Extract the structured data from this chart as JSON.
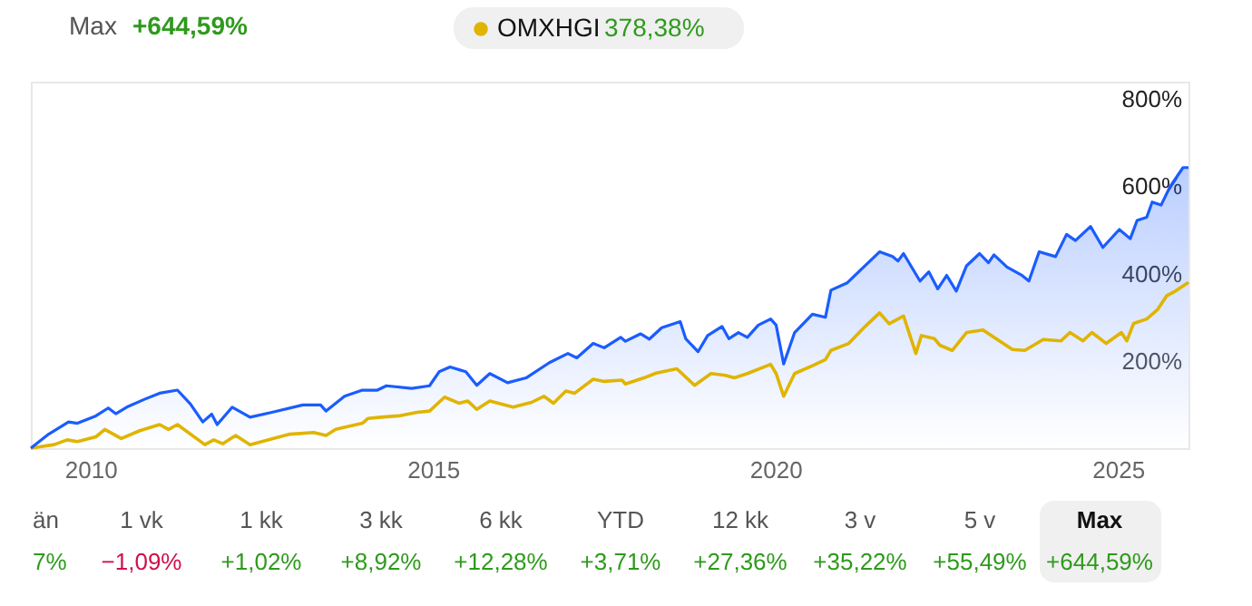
{
  "chart_data": {
    "type": "line",
    "legend": "top",
    "xlim": [
      2009.13,
      2026.03
    ],
    "xticks": [
      2010,
      2015,
      2020,
      2025
    ],
    "ylim": [
      0,
      840
    ],
    "yticks": [
      {
        "value": 200,
        "label": "200%"
      },
      {
        "value": 400,
        "label": "400%"
      },
      {
        "value": 600,
        "label": "600%"
      },
      {
        "value": 800,
        "label": "800%"
      }
    ],
    "grid": false,
    "series": [
      {
        "type": "area",
        "color": "#1a5cff",
        "x": [
          2009.13,
          2009.39,
          2009.68,
          2009.81,
          2010.08,
          2010.26,
          2010.37,
          2010.53,
          2010.79,
          2011.01,
          2011.27,
          2011.46,
          2011.64,
          2011.77,
          2011.85,
          2012.07,
          2012.33,
          2012.65,
          2013.1,
          2013.36,
          2013.44,
          2013.71,
          2013.97,
          2014.19,
          2014.32,
          2014.69,
          2014.95,
          2015.09,
          2015.25,
          2015.48,
          2015.64,
          2015.83,
          2016.09,
          2016.36,
          2016.7,
          2016.97,
          2017.1,
          2017.34,
          2017.5,
          2017.74,
          2017.81,
          2018.03,
          2018.16,
          2018.34,
          2018.61,
          2018.69,
          2018.87,
          2019.01,
          2019.22,
          2019.32,
          2019.46,
          2019.59,
          2019.75,
          2019.93,
          2020.01,
          2020.12,
          2020.28,
          2020.54,
          2020.73,
          2020.81,
          2021.05,
          2021.26,
          2021.52,
          2021.71,
          2021.79,
          2021.87,
          2022.11,
          2022.24,
          2022.37,
          2022.5,
          2022.64,
          2022.79,
          2022.98,
          2023.11,
          2023.19,
          2023.38,
          2023.59,
          2023.7,
          2023.85,
          2024.09,
          2024.25,
          2024.38,
          2024.6,
          2024.78,
          2025.02,
          2025.18,
          2025.28,
          2025.42,
          2025.5,
          2025.63,
          2025.76,
          2025.95,
          2026.03
        ],
        "values": [
          0,
          32,
          60,
          57,
          74,
          92,
          79,
          94,
          112,
          126,
          133,
          101,
          60,
          78,
          54,
          94,
          71,
          82,
          99,
          99,
          85,
          119,
          133,
          133,
          143,
          137,
          143,
          175,
          186,
          175,
          144,
          171,
          150,
          161,
          196,
          217,
          207,
          240,
          230,
          254,
          245,
          262,
          250,
          276,
          290,
          251,
          221,
          258,
          279,
          251,
          265,
          254,
          282,
          296,
          282,
          193,
          265,
          307,
          300,
          362,
          379,
          411,
          450,
          439,
          429,
          446,
          383,
          404,
          365,
          396,
          360,
          418,
          446,
          425,
          443,
          415,
          397,
          383,
          450,
          439,
          490,
          476,
          508,
          460,
          501,
          480,
          522,
          529,
          564,
          557,
          599,
          643,
          643
        ]
      },
      {
        "name": "OMXHGI",
        "color": "#e0b400",
        "x": [
          2009.13,
          2009.47,
          2009.66,
          2009.81,
          2010.08,
          2010.21,
          2010.45,
          2010.72,
          2011.01,
          2011.14,
          2011.27,
          2011.67,
          2011.8,
          2011.93,
          2012.12,
          2012.33,
          2012.91,
          2013.26,
          2013.44,
          2013.58,
          2013.97,
          2014.05,
          2014.24,
          2014.5,
          2014.77,
          2014.95,
          2015.17,
          2015.38,
          2015.51,
          2015.64,
          2015.83,
          2016.17,
          2016.44,
          2016.62,
          2016.76,
          2016.94,
          2017.07,
          2017.34,
          2017.5,
          2017.76,
          2017.81,
          2018.08,
          2018.26,
          2018.56,
          2018.82,
          2019.06,
          2019.27,
          2019.4,
          2019.59,
          2019.93,
          2020.01,
          2020.12,
          2020.28,
          2020.54,
          2020.73,
          2020.81,
          2021.07,
          2021.31,
          2021.52,
          2021.66,
          2021.79,
          2021.87,
          2022.05,
          2022.13,
          2022.32,
          2022.4,
          2022.58,
          2022.79,
          2023.03,
          2023.19,
          2023.46,
          2023.64,
          2023.91,
          2024.17,
          2024.3,
          2024.49,
          2024.62,
          2024.83,
          2025.05,
          2025.13,
          2025.23,
          2025.42,
          2025.58,
          2025.71,
          2025.84,
          2026.03
        ],
        "values": [
          0,
          8,
          19,
          15,
          26,
          43,
          22,
          40,
          54,
          43,
          54,
          8,
          19,
          10,
          29,
          8,
          32,
          36,
          29,
          43,
          57,
          68,
          71,
          74,
          82,
          85,
          117,
          103,
          108,
          89,
          108,
          94,
          105,
          119,
          103,
          131,
          126,
          158,
          153,
          156,
          147,
          161,
          172,
          182,
          144,
          171,
          167,
          161,
          171,
          192,
          171,
          119,
          171,
          189,
          203,
          224,
          240,
          279,
          310,
          285,
          296,
          303,
          217,
          258,
          251,
          236,
          224,
          265,
          271,
          254,
          226,
          224,
          249,
          246,
          265,
          246,
          265,
          240,
          265,
          246,
          286,
          296,
          318,
          349,
          360,
          380
        ]
      }
    ],
    "annotations": [
      "Max",
      "+644,59%",
      "378,38%",
      "än",
      "7%",
      "1 vk",
      "−1,09%",
      "1 kk",
      "+1,02%",
      "3 kk",
      "+8,92%",
      "6 kk",
      "+12,28%",
      "YTD",
      "+3,71%",
      "12 kk",
      "+27,36%",
      "3 v",
      "+35,22%",
      "5 v",
      "+55,49%",
      "Max",
      "+644,59%"
    ]
  }
}
